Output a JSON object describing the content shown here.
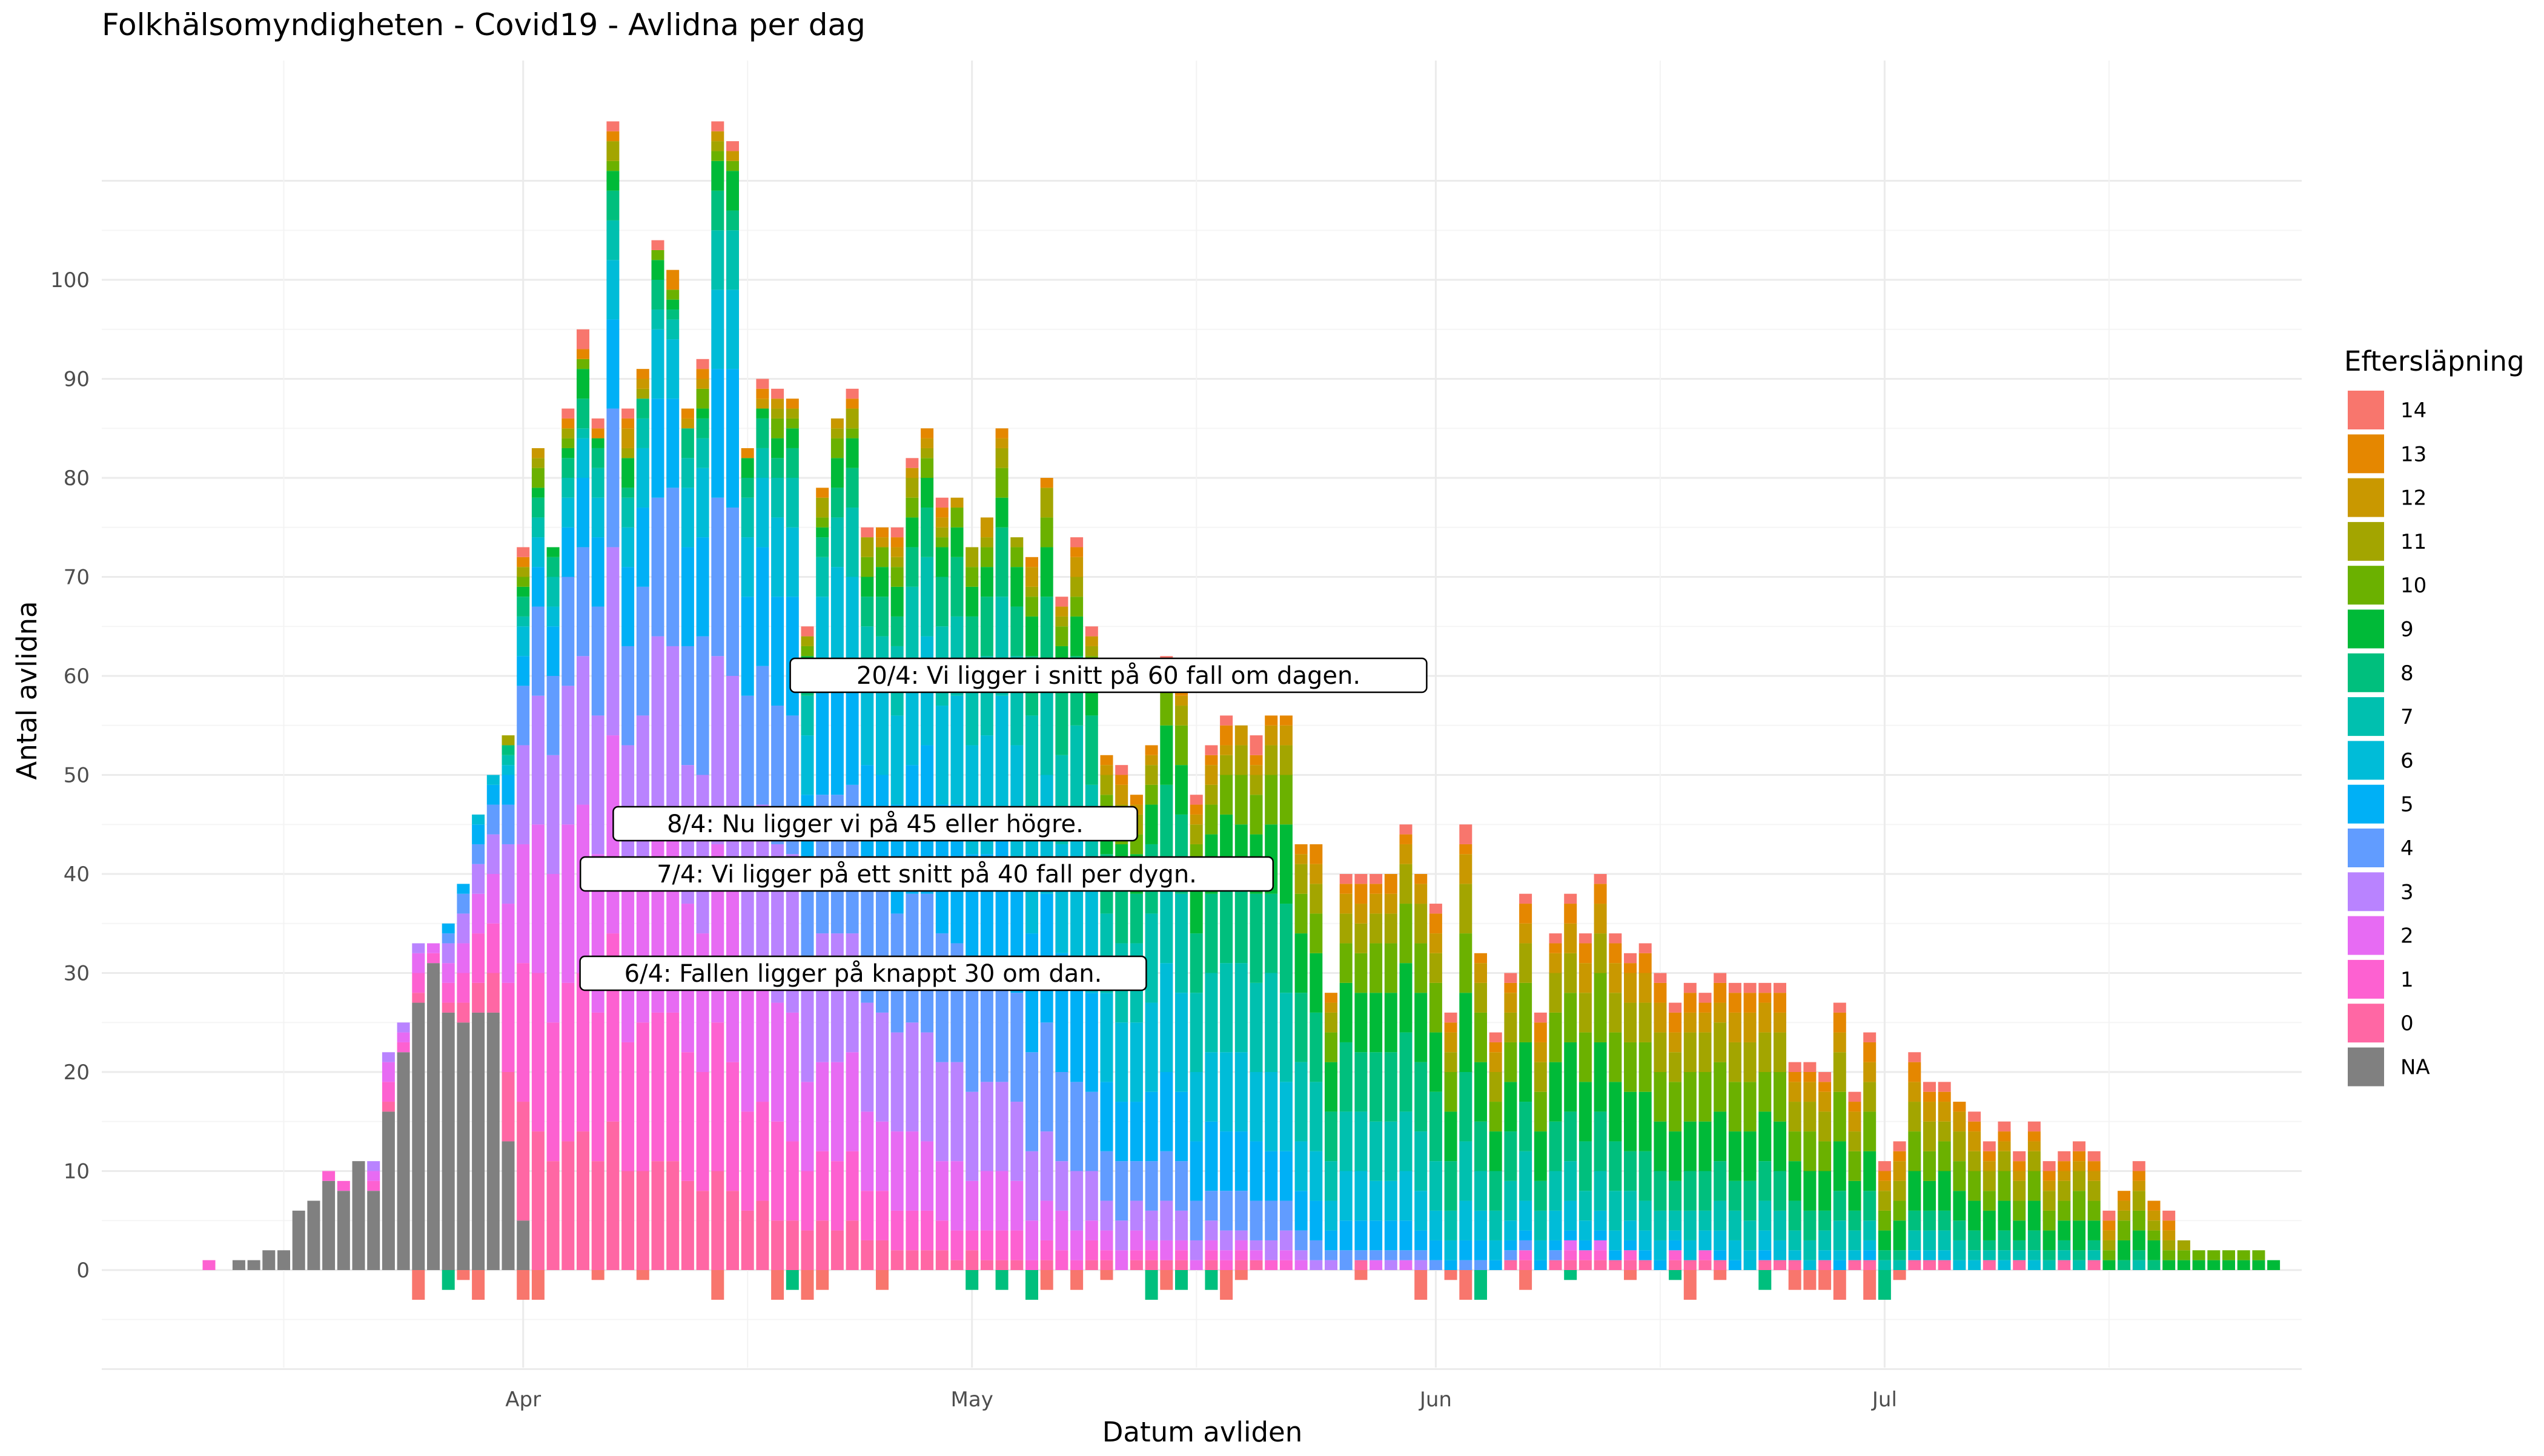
{
  "chart_data": {
    "type": "bar",
    "stacked": true,
    "title": "Folkhälsomyndigheten - Covid19 - Avlidna per dag",
    "xlabel": "Datum avliden",
    "ylabel": "Antal avlidna",
    "x_ticks": [
      "Apr",
      "May",
      "Jun",
      "Jul"
    ],
    "y_ticks": [
      0,
      10,
      20,
      30,
      40,
      50,
      60,
      70,
      80,
      90,
      100
    ],
    "ylim": [
      -10,
      115
    ],
    "grid": true,
    "legend": {
      "title": "Eftersläpning",
      "position": "right",
      "entries": [
        {
          "label": "14",
          "color": "#F8766D"
        },
        {
          "label": "13",
          "color": "#E58700"
        },
        {
          "label": "12",
          "color": "#C99800"
        },
        {
          "label": "11",
          "color": "#A3A500"
        },
        {
          "label": "10",
          "color": "#6BB100"
        },
        {
          "label": "9",
          "color": "#00BA38"
        },
        {
          "label": "8",
          "color": "#00BF7D"
        },
        {
          "label": "7",
          "color": "#00C0AF"
        },
        {
          "label": "6",
          "color": "#00BCD8"
        },
        {
          "label": "5",
          "color": "#00B0F6"
        },
        {
          "label": "4",
          "color": "#619CFF"
        },
        {
          "label": "3",
          "color": "#B983FF"
        },
        {
          "label": "2",
          "color": "#E76BF3"
        },
        {
          "label": "1",
          "color": "#FD61D1"
        },
        {
          "label": "0",
          "color": "#FF67A4"
        },
        {
          "label": "NA",
          "color": "#808080"
        }
      ]
    },
    "annotations": [
      {
        "text": "20/4: Vi ligger i snitt på 60 fall om dagen.",
        "x": "2020-04-20",
        "y": 60
      },
      {
        "text": "8/4: Nu ligger vi på 45 eller högre.",
        "x": "2020-04-08",
        "y": 45
      },
      {
        "text": "7/4: Vi ligger på ett snitt på 40 fall per dygn.",
        "x": "2020-04-07",
        "y": 40
      },
      {
        "text": "6/4: Fallen ligger på knappt 30 om dan.",
        "x": "2020-04-06",
        "y": 30
      }
    ],
    "series_note": "Daily totals (estimated). Bars are stacked by reporting lag (Eftersläpning).",
    "days": [
      {
        "date": "2020-03-11",
        "na": 0,
        "reported": 1
      },
      {
        "date": "2020-03-12",
        "na": 0,
        "reported": 0
      },
      {
        "date": "2020-03-13",
        "na": 1,
        "reported": 0
      },
      {
        "date": "2020-03-14",
        "na": 1,
        "reported": 0
      },
      {
        "date": "2020-03-15",
        "na": 2,
        "reported": 0
      },
      {
        "date": "2020-03-16",
        "na": 2,
        "reported": 0
      },
      {
        "date": "2020-03-17",
        "na": 6,
        "reported": 0
      },
      {
        "date": "2020-03-18",
        "na": 7,
        "reported": 0
      },
      {
        "date": "2020-03-19",
        "na": 9,
        "reported": 1
      },
      {
        "date": "2020-03-20",
        "na": 8,
        "reported": 1
      },
      {
        "date": "2020-03-21",
        "na": 11,
        "reported": 0
      },
      {
        "date": "2020-03-22",
        "na": 8,
        "reported": 3
      },
      {
        "date": "2020-03-23",
        "na": 16,
        "reported": 6
      },
      {
        "date": "2020-03-24",
        "na": 22,
        "reported": 3
      },
      {
        "date": "2020-03-25",
        "na": 27,
        "reported": 6
      },
      {
        "date": "2020-03-26",
        "na": 31,
        "reported": 2
      },
      {
        "date": "2020-03-27",
        "na": 26,
        "reported": 9
      },
      {
        "date": "2020-03-28",
        "na": 25,
        "reported": 14
      },
      {
        "date": "2020-03-29",
        "na": 26,
        "reported": 20
      },
      {
        "date": "2020-03-30",
        "na": 26,
        "reported": 24
      },
      {
        "date": "2020-03-31",
        "na": 13,
        "reported": 41
      },
      {
        "date": "2020-04-01",
        "na": 5,
        "reported": 68
      },
      {
        "date": "2020-04-02",
        "na": 0,
        "reported": 83
      },
      {
        "date": "2020-04-03",
        "na": 0,
        "reported": 73
      },
      {
        "date": "2020-04-04",
        "na": 0,
        "reported": 87
      },
      {
        "date": "2020-04-05",
        "na": 0,
        "reported": 95
      },
      {
        "date": "2020-04-06",
        "na": 0,
        "reported": 86
      },
      {
        "date": "2020-04-07",
        "na": 0,
        "reported": 116
      },
      {
        "date": "2020-04-08",
        "na": 0,
        "reported": 87
      },
      {
        "date": "2020-04-09",
        "na": 0,
        "reported": 91
      },
      {
        "date": "2020-04-10",
        "na": 0,
        "reported": 104
      },
      {
        "date": "2020-04-11",
        "na": 0,
        "reported": 101
      },
      {
        "date": "2020-04-12",
        "na": 0,
        "reported": 87
      },
      {
        "date": "2020-04-13",
        "na": 0,
        "reported": 92
      },
      {
        "date": "2020-04-14",
        "na": 0,
        "reported": 116
      },
      {
        "date": "2020-04-15",
        "na": 0,
        "reported": 114
      },
      {
        "date": "2020-04-16",
        "na": 0,
        "reported": 83
      },
      {
        "date": "2020-04-17",
        "na": 0,
        "reported": 90
      },
      {
        "date": "2020-04-18",
        "na": 0,
        "reported": 89
      },
      {
        "date": "2020-04-19",
        "na": 0,
        "reported": 88
      },
      {
        "date": "2020-04-20",
        "na": 0,
        "reported": 65
      },
      {
        "date": "2020-04-21",
        "na": 0,
        "reported": 79
      },
      {
        "date": "2020-04-22",
        "na": 0,
        "reported": 86
      },
      {
        "date": "2020-04-23",
        "na": 0,
        "reported": 89
      },
      {
        "date": "2020-04-24",
        "na": 0,
        "reported": 75
      },
      {
        "date": "2020-04-25",
        "na": 0,
        "reported": 75
      },
      {
        "date": "2020-04-26",
        "na": 0,
        "reported": 75
      },
      {
        "date": "2020-04-27",
        "na": 0,
        "reported": 82
      },
      {
        "date": "2020-04-28",
        "na": 0,
        "reported": 85
      },
      {
        "date": "2020-04-29",
        "na": 0,
        "reported": 78
      },
      {
        "date": "2020-04-30",
        "na": 0,
        "reported": 78
      },
      {
        "date": "2020-05-01",
        "na": 0,
        "reported": 73
      },
      {
        "date": "2020-05-02",
        "na": 0,
        "reported": 76
      },
      {
        "date": "2020-05-03",
        "na": 0,
        "reported": 85
      },
      {
        "date": "2020-05-04",
        "na": 0,
        "reported": 74
      },
      {
        "date": "2020-05-05",
        "na": 0,
        "reported": 72
      },
      {
        "date": "2020-05-06",
        "na": 0,
        "reported": 80
      },
      {
        "date": "2020-05-07",
        "na": 0,
        "reported": 68
      },
      {
        "date": "2020-05-08",
        "na": 0,
        "reported": 74
      },
      {
        "date": "2020-05-09",
        "na": 0,
        "reported": 65
      },
      {
        "date": "2020-05-10",
        "na": 0,
        "reported": 52
      },
      {
        "date": "2020-05-11",
        "na": 0,
        "reported": 51
      },
      {
        "date": "2020-05-12",
        "na": 0,
        "reported": 48
      },
      {
        "date": "2020-05-13",
        "na": 0,
        "reported": 53
      },
      {
        "date": "2020-05-14",
        "na": 0,
        "reported": 62
      },
      {
        "date": "2020-05-15",
        "na": 0,
        "reported": 59
      },
      {
        "date": "2020-05-16",
        "na": 0,
        "reported": 48
      },
      {
        "date": "2020-05-17",
        "na": 0,
        "reported": 53
      },
      {
        "date": "2020-05-18",
        "na": 0,
        "reported": 56
      },
      {
        "date": "2020-05-19",
        "na": 0,
        "reported": 55
      },
      {
        "date": "2020-05-20",
        "na": 0,
        "reported": 54
      },
      {
        "date": "2020-05-21",
        "na": 0,
        "reported": 56
      },
      {
        "date": "2020-05-22",
        "na": 0,
        "reported": 56
      },
      {
        "date": "2020-05-23",
        "na": 0,
        "reported": 43
      },
      {
        "date": "2020-05-24",
        "na": 0,
        "reported": 43
      },
      {
        "date": "2020-05-25",
        "na": 0,
        "reported": 28
      },
      {
        "date": "2020-05-26",
        "na": 0,
        "reported": 40
      },
      {
        "date": "2020-05-27",
        "na": 0,
        "reported": 40
      },
      {
        "date": "2020-05-28",
        "na": 0,
        "reported": 40
      },
      {
        "date": "2020-05-29",
        "na": 0,
        "reported": 40
      },
      {
        "date": "2020-05-30",
        "na": 0,
        "reported": 45
      },
      {
        "date": "2020-05-31",
        "na": 0,
        "reported": 40
      },
      {
        "date": "2020-06-01",
        "na": 0,
        "reported": 37
      },
      {
        "date": "2020-06-02",
        "na": 0,
        "reported": 26
      },
      {
        "date": "2020-06-03",
        "na": 0,
        "reported": 45
      },
      {
        "date": "2020-06-04",
        "na": 0,
        "reported": 32
      },
      {
        "date": "2020-06-05",
        "na": 0,
        "reported": 24
      },
      {
        "date": "2020-06-06",
        "na": 0,
        "reported": 30
      },
      {
        "date": "2020-06-07",
        "na": 0,
        "reported": 38
      },
      {
        "date": "2020-06-08",
        "na": 0,
        "reported": 26
      },
      {
        "date": "2020-06-09",
        "na": 0,
        "reported": 34
      },
      {
        "date": "2020-06-10",
        "na": 0,
        "reported": 38
      },
      {
        "date": "2020-06-11",
        "na": 0,
        "reported": 34
      },
      {
        "date": "2020-06-12",
        "na": 0,
        "reported": 40
      },
      {
        "date": "2020-06-13",
        "na": 0,
        "reported": 34
      },
      {
        "date": "2020-06-14",
        "na": 0,
        "reported": 32
      },
      {
        "date": "2020-06-15",
        "na": 0,
        "reported": 33
      },
      {
        "date": "2020-06-16",
        "na": 0,
        "reported": 30
      },
      {
        "date": "2020-06-17",
        "na": 0,
        "reported": 27
      },
      {
        "date": "2020-06-18",
        "na": 0,
        "reported": 29
      },
      {
        "date": "2020-06-19",
        "na": 0,
        "reported": 28
      },
      {
        "date": "2020-06-20",
        "na": 0,
        "reported": 30
      },
      {
        "date": "2020-06-21",
        "na": 0,
        "reported": 29
      },
      {
        "date": "2020-06-22",
        "na": 0,
        "reported": 29
      },
      {
        "date": "2020-06-23",
        "na": 0,
        "reported": 29
      },
      {
        "date": "2020-06-24",
        "na": 0,
        "reported": 29
      },
      {
        "date": "2020-06-25",
        "na": 0,
        "reported": 21
      },
      {
        "date": "2020-06-26",
        "na": 0,
        "reported": 21
      },
      {
        "date": "2020-06-27",
        "na": 0,
        "reported": 20
      },
      {
        "date": "2020-06-28",
        "na": 0,
        "reported": 27
      },
      {
        "date": "2020-06-29",
        "na": 0,
        "reported": 18
      },
      {
        "date": "2020-06-30",
        "na": 0,
        "reported": 24
      },
      {
        "date": "2020-07-01",
        "na": 0,
        "reported": 11
      },
      {
        "date": "2020-07-02",
        "na": 0,
        "reported": 13
      },
      {
        "date": "2020-07-03",
        "na": 0,
        "reported": 22
      },
      {
        "date": "2020-07-04",
        "na": 0,
        "reported": 19
      },
      {
        "date": "2020-07-05",
        "na": 0,
        "reported": 19
      },
      {
        "date": "2020-07-06",
        "na": 0,
        "reported": 17
      },
      {
        "date": "2020-07-07",
        "na": 0,
        "reported": 16
      },
      {
        "date": "2020-07-08",
        "na": 0,
        "reported": 13
      },
      {
        "date": "2020-07-09",
        "na": 0,
        "reported": 15
      },
      {
        "date": "2020-07-10",
        "na": 0,
        "reported": 12
      },
      {
        "date": "2020-07-11",
        "na": 0,
        "reported": 15
      },
      {
        "date": "2020-07-12",
        "na": 0,
        "reported": 11
      },
      {
        "date": "2020-07-13",
        "na": 0,
        "reported": 12
      },
      {
        "date": "2020-07-14",
        "na": 0,
        "reported": 13
      },
      {
        "date": "2020-07-15",
        "na": 0,
        "reported": 12
      },
      {
        "date": "2020-07-16",
        "na": 0,
        "reported": 6
      },
      {
        "date": "2020-07-17",
        "na": 0,
        "reported": 8
      },
      {
        "date": "2020-07-18",
        "na": 0,
        "reported": 11
      },
      {
        "date": "2020-07-19",
        "na": 0,
        "reported": 7
      },
      {
        "date": "2020-07-20",
        "na": 0,
        "reported": 6
      },
      {
        "date": "2020-07-21",
        "na": 0,
        "reported": 3
      },
      {
        "date": "2020-07-22",
        "na": 0,
        "reported": 2
      },
      {
        "date": "2020-07-23",
        "na": 0,
        "reported": 2
      },
      {
        "date": "2020-07-24",
        "na": 0,
        "reported": 2
      },
      {
        "date": "2020-07-25",
        "na": 0,
        "reported": 2
      },
      {
        "date": "2020-07-26",
        "na": 0,
        "reported": 2
      },
      {
        "date": "2020-07-27",
        "na": 0,
        "reported": 1
      }
    ]
  }
}
